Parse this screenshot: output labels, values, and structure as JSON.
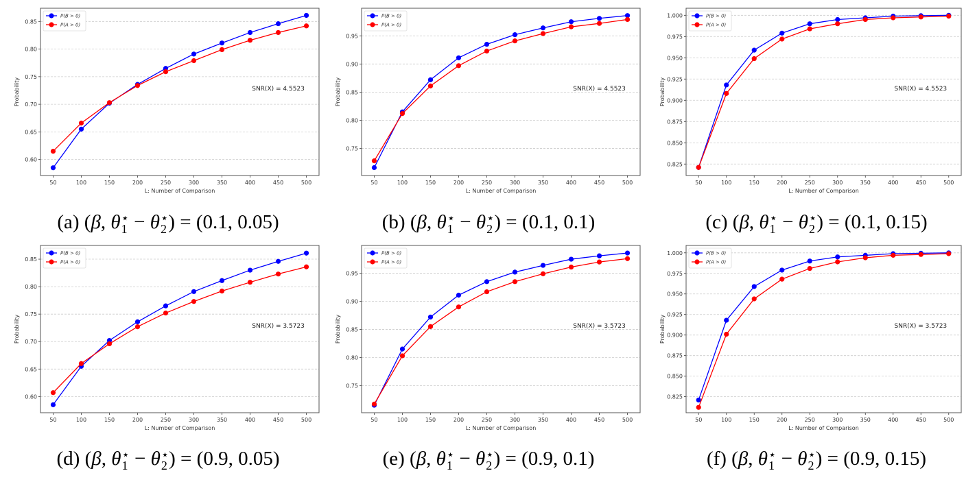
{
  "chart_data": [
    {
      "id": "a",
      "type": "line",
      "xlabel": "L: Number of Comparison",
      "ylabel": "Probability",
      "x": [
        50,
        100,
        150,
        200,
        250,
        300,
        350,
        400,
        450,
        500
      ],
      "xlim": [
        27.5,
        522.5
      ],
      "ylim": [
        0.571,
        0.874
      ],
      "yticks": [
        "0.60",
        "0.65",
        "0.70",
        "0.75",
        "0.80",
        "0.85"
      ],
      "grid": "horizontal dashed",
      "legend": "top-left",
      "annotation": "SNR(X) = 4.5523",
      "series": [
        {
          "name": "P(B > 0)",
          "color": "#0000ff",
          "values": [
            0.585,
            0.655,
            0.702,
            0.736,
            0.765,
            0.791,
            0.811,
            0.83,
            0.846,
            0.861
          ]
        },
        {
          "name": "P(A > 0)",
          "color": "#ff0000",
          "values": [
            0.615,
            0.666,
            0.703,
            0.734,
            0.759,
            0.779,
            0.799,
            0.816,
            0.83,
            0.842
          ]
        }
      ],
      "caption": {
        "label": "(a)",
        "beta": "β",
        "theta": "θ",
        "star": "⋆",
        "i1": "1",
        "i2": "2",
        "values": "(0.1, 0.05)"
      }
    },
    {
      "id": "b",
      "type": "line",
      "xlabel": "L: Number of Comparison",
      "ylabel": "Probability",
      "x": [
        50,
        100,
        150,
        200,
        250,
        300,
        350,
        400,
        450,
        500
      ],
      "xlim": [
        27.5,
        522.5
      ],
      "ylim": [
        0.702,
        0.999
      ],
      "yticks": [
        "0.75",
        "0.80",
        "0.85",
        "0.90",
        "0.95"
      ],
      "grid": "horizontal dashed",
      "legend": "top-left",
      "annotation": "SNR(X) = 4.5523",
      "series": [
        {
          "name": "P(B > 0)",
          "color": "#0000ff",
          "values": [
            0.716,
            0.815,
            0.872,
            0.911,
            0.935,
            0.952,
            0.964,
            0.975,
            0.981,
            0.986
          ]
        },
        {
          "name": "P(A > 0)",
          "color": "#ff0000",
          "values": [
            0.728,
            0.812,
            0.861,
            0.897,
            0.923,
            0.941,
            0.954,
            0.966,
            0.972,
            0.979
          ]
        }
      ],
      "caption": {
        "label": "(b)",
        "beta": "β",
        "theta": "θ",
        "star": "⋆",
        "i1": "1",
        "i2": "2",
        "values": "(0.1, 0.1)"
      }
    },
    {
      "id": "c",
      "type": "line",
      "xlabel": "L: Number of Comparison",
      "ylabel": "Probability",
      "x": [
        50,
        100,
        150,
        200,
        250,
        300,
        350,
        400,
        450,
        500
      ],
      "xlim": [
        27.5,
        522.5
      ],
      "ylim": [
        0.8115,
        1.0083
      ],
      "yticks": [
        "0.825",
        "0.850",
        "0.875",
        "0.900",
        "0.925",
        "0.950",
        "0.975",
        "1.000"
      ],
      "grid": "horizontal dashed",
      "legend": "top-left",
      "annotation": "SNR(X) = 4.5523",
      "series": [
        {
          "name": "P(B > 0)",
          "color": "#0000ff",
          "values": [
            0.821,
            0.918,
            0.959,
            0.979,
            0.99,
            0.995,
            0.997,
            0.999,
            0.9995,
            1.0
          ]
        },
        {
          "name": "P(A > 0)",
          "color": "#ff0000",
          "values": [
            0.821,
            0.908,
            0.949,
            0.972,
            0.984,
            0.99,
            0.995,
            0.997,
            0.998,
            0.999
          ]
        }
      ],
      "caption": {
        "label": "(c)",
        "beta": "β",
        "theta": "θ",
        "star": "⋆",
        "i1": "1",
        "i2": "2",
        "values": "(0.1, 0.15)"
      }
    },
    {
      "id": "d",
      "type": "line",
      "xlabel": "L: Number of Comparison",
      "ylabel": "Probability",
      "x": [
        50,
        100,
        150,
        200,
        250,
        300,
        350,
        400,
        450,
        500
      ],
      "xlim": [
        27.5,
        522.5
      ],
      "ylim": [
        0.5705,
        0.875
      ],
      "yticks": [
        "0.60",
        "0.65",
        "0.70",
        "0.75",
        "0.80",
        "0.85"
      ],
      "grid": "horizontal dashed",
      "legend": "top-left",
      "annotation": "SNR(X) = 3.5723",
      "series": [
        {
          "name": "P(B > 0)",
          "color": "#0000ff",
          "values": [
            0.585,
            0.655,
            0.702,
            0.736,
            0.765,
            0.791,
            0.811,
            0.83,
            0.846,
            0.861
          ]
        },
        {
          "name": "P(A > 0)",
          "color": "#ff0000",
          "values": [
            0.607,
            0.66,
            0.696,
            0.727,
            0.752,
            0.773,
            0.792,
            0.808,
            0.823,
            0.836
          ]
        }
      ],
      "caption": {
        "label": "(d)",
        "beta": "β",
        "theta": "θ",
        "star": "⋆",
        "i1": "1",
        "i2": "2",
        "values": "(0.9, 0.05)"
      }
    },
    {
      "id": "e",
      "type": "line",
      "xlabel": "L: Number of Comparison",
      "ylabel": "Probability",
      "x": [
        50,
        100,
        150,
        200,
        250,
        300,
        350,
        400,
        450,
        500
      ],
      "xlim": [
        27.5,
        522.5
      ],
      "ylim": [
        0.7016,
        0.9995
      ],
      "yticks": [
        "0.75",
        "0.80",
        "0.85",
        "0.90",
        "0.95"
      ],
      "grid": "horizontal dashed",
      "legend": "top-left",
      "annotation": "SNR(X) = 3.5723",
      "series": [
        {
          "name": "P(B > 0)",
          "color": "#0000ff",
          "values": [
            0.715,
            0.815,
            0.872,
            0.911,
            0.935,
            0.952,
            0.964,
            0.975,
            0.981,
            0.986
          ]
        },
        {
          "name": "P(A > 0)",
          "color": "#ff0000",
          "values": [
            0.717,
            0.803,
            0.855,
            0.89,
            0.917,
            0.935,
            0.949,
            0.961,
            0.97,
            0.976
          ]
        }
      ],
      "caption": {
        "label": "(e)",
        "beta": "β",
        "theta": "θ",
        "star": "⋆",
        "i1": "1",
        "i2": "2",
        "values": "(0.9, 0.1)"
      }
    },
    {
      "id": "f",
      "type": "line",
      "xlabel": "L: Number of Comparison",
      "ylabel": "Probability",
      "x": [
        50,
        100,
        150,
        200,
        250,
        300,
        350,
        400,
        450,
        500
      ],
      "xlim": [
        27.5,
        522.5
      ],
      "ylim": [
        0.8055,
        1.009
      ],
      "yticks": [
        "0.825",
        "0.850",
        "0.875",
        "0.900",
        "0.925",
        "0.950",
        "0.975",
        "1.000"
      ],
      "grid": "horizontal dashed",
      "legend": "top-left",
      "annotation": "SNR(X) = 3.5723",
      "series": [
        {
          "name": "P(B > 0)",
          "color": "#0000ff",
          "values": [
            0.821,
            0.918,
            0.959,
            0.979,
            0.99,
            0.995,
            0.997,
            0.999,
            0.9995,
            1.0
          ]
        },
        {
          "name": "P(A > 0)",
          "color": "#ff0000",
          "values": [
            0.812,
            0.901,
            0.944,
            0.968,
            0.981,
            0.989,
            0.994,
            0.997,
            0.998,
            0.999
          ]
        }
      ],
      "caption": {
        "label": "(f)",
        "beta": "β",
        "theta": "θ",
        "star": "⋆",
        "i1": "1",
        "i2": "2",
        "values": "(0.9, 0.15)"
      }
    }
  ]
}
